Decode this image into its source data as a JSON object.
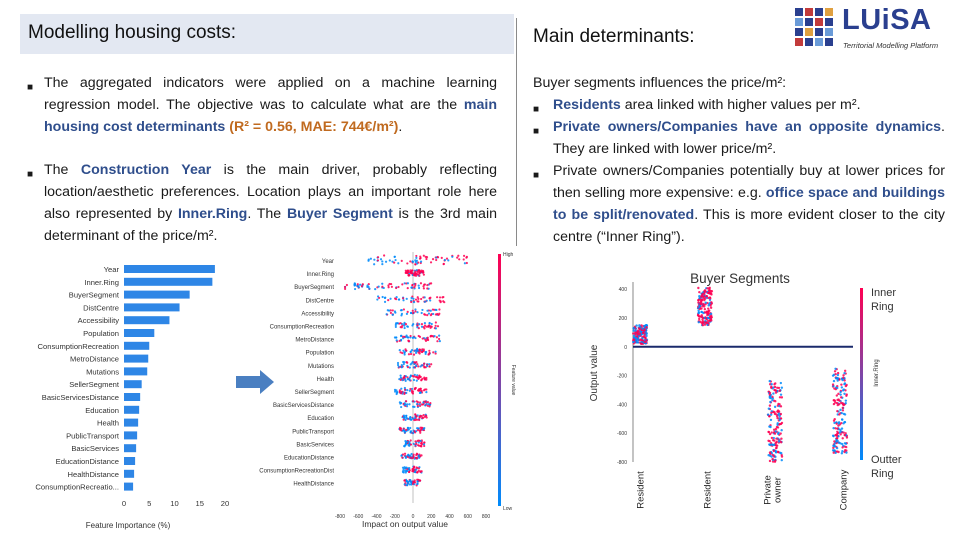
{
  "header": {
    "title": "Modelling housing costs:"
  },
  "main_title": "Main determinants:",
  "logo": {
    "name": "LUiSA",
    "subtitle": "Territorial Modelling Platform"
  },
  "left_bullets": {
    "b1_text": "The aggregated indicators were applied on a machine learning regression model. The objective was to calculate what are the ",
    "b1_highlight": "main housing cost determinants",
    "b1_stats": "(R² = 0.56, MAE: 744€/m²)",
    "b2_text1": "The ",
    "b2_hl1": "Construction Year",
    "b2_text2": " is the main driver, probably reflecting location/aesthetic preferences. Location plays an important role here also represented by ",
    "b2_hl2": "Inner.Ring",
    "b2_text3": ". The ",
    "b2_hl3": "Buyer Segment",
    "b2_text4": " is the 3rd main determinant of the price/m²."
  },
  "right_bullets": {
    "intro": "Buyer segments influences the price/m²:",
    "b1_hl": "Residents",
    "b1_text": " area linked with higher values per m².",
    "b2_hl": "Private owners/Companies have an opposite dynamics",
    "b2_text": ". They are linked with lower price/m².",
    "b3_text1": "Private owners/Companies potentially buy at lower prices for then selling more expensive: e.g. ",
    "b3_hl": "office space and buildings to be split/renovated",
    "b3_text2": ". This is more evident closer to the city centre (“Inner Ring”)."
  },
  "feature_importance": {
    "xlabel": "Feature Importance (%)",
    "xticks": [
      0,
      5,
      10,
      15,
      20
    ],
    "xlim": [
      0,
      20
    ],
    "features": [
      "Year",
      "Inner.Ring",
      "BuyerSegment",
      "DistCentre",
      "Accessibility",
      "Population",
      "ConsumptionRecreation",
      "MetroDistance",
      "Mutations",
      "SellerSegment",
      "BasicServicesDistance",
      "Education",
      "Health",
      "PublicTransport",
      "BasicServices",
      "EducationDistance",
      "HealthDistance",
      "ConsumptionRecreatio..."
    ],
    "values": [
      18,
      17.5,
      13,
      11,
      9,
      6,
      5,
      4.8,
      4.6,
      3.5,
      3.2,
      3.0,
      2.8,
      2.6,
      2.4,
      2.2,
      2.0,
      1.8
    ],
    "bar_color": "#2e86e6"
  },
  "shap": {
    "xlabel": "Impact on output value",
    "colorbar_label": "Feature value",
    "colorbar_high": "High",
    "colorbar_low": "Low",
    "xticks": [
      -800,
      -600,
      -400,
      -200,
      0,
      200,
      400,
      600,
      800
    ],
    "features": [
      "Year",
      "Inner.Ring",
      "BuyerSegment",
      "DistCentre",
      "Accessibility",
      "ConsumptionRecreation",
      "MetroDistance",
      "Population",
      "Mutations",
      "Health",
      "SellerSegment",
      "BasicServicesDistance",
      "Education",
      "PublicTransport",
      "BasicServices",
      "EducationDistance",
      "ConsumptionRecreationDist",
      "HealthDistance"
    ],
    "colors": {
      "high": "#ff0052",
      "low": "#008bfb"
    }
  },
  "buyer_segments": {
    "title": "Buyer Segments",
    "ylabel": "Output value",
    "yticks": [
      400,
      200,
      0,
      -200,
      -400,
      -600,
      -800
    ],
    "ylim": [
      -800,
      450
    ],
    "categories": [
      "Resident",
      "Private owner",
      "Company"
    ],
    "category_labels": [
      "Resident",
      "Resident",
      "Private owner",
      "Company"
    ],
    "colorbar_label": "Inner.Ring",
    "inner_ring_label": "Inner Ring",
    "outer_ring_label": "Outter Ring",
    "colors": {
      "inner": "#ff0052",
      "outer": "#008bfb",
      "zero_line": "#1a2a6c"
    }
  }
}
